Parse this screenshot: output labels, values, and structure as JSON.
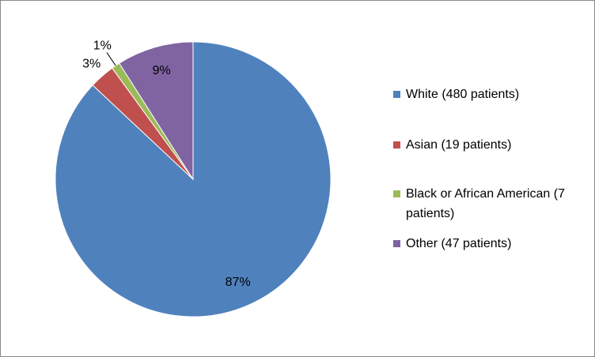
{
  "chart_data": {
    "type": "pie",
    "categories": [
      "White (480 patients)",
      "Asian (19 patients)",
      "Black or African American (7 patients)",
      "Other (47 patients)"
    ],
    "values": [
      87,
      3,
      1,
      9
    ],
    "value_labels": [
      "87%",
      "3%",
      "1%",
      "9%"
    ],
    "colors": [
      "#4f81bd",
      "#c0504d",
      "#9bbb59",
      "#8064a2"
    ],
    "legend": "right"
  }
}
